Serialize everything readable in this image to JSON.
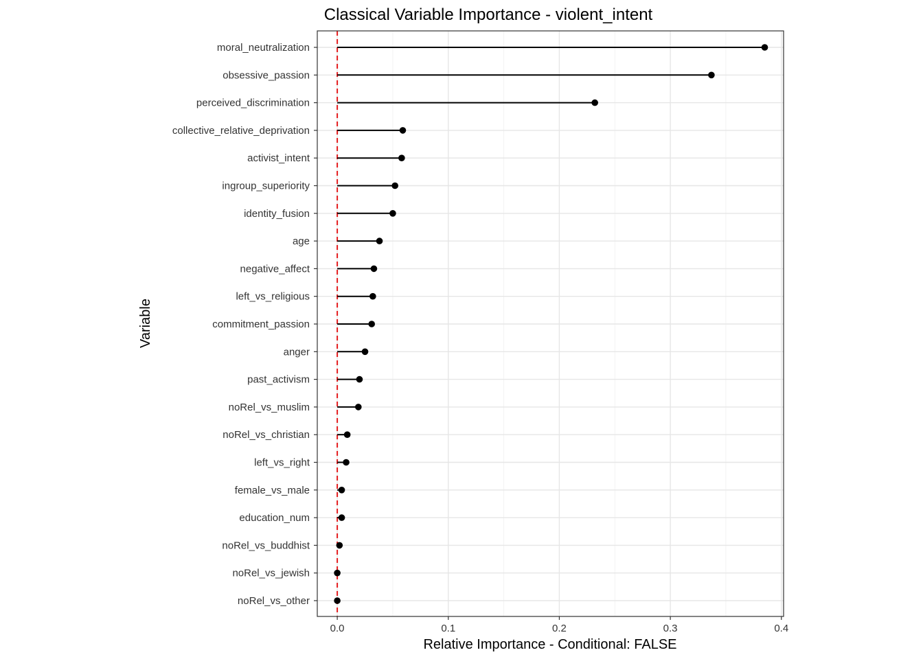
{
  "chart_data": {
    "type": "lollipop",
    "orientation": "horizontal",
    "title": "Classical Variable Importance - violent_intent",
    "xlabel": "Relative Importance - Conditional: FALSE",
    "ylabel": "Variable",
    "xlim": [
      -0.018,
      0.402
    ],
    "xticks": [
      0.0,
      0.1,
      0.2,
      0.3,
      0.4
    ],
    "xtick_labels": [
      "0.0",
      "0.1",
      "0.2",
      "0.3",
      "0.4"
    ],
    "reference_line": {
      "x": 0,
      "color": "#e41a1c",
      "style": "dashed"
    },
    "grid": true,
    "theme": "bw",
    "categories": [
      "moral_neutralization",
      "obsessive_passion",
      "perceived_discrimination",
      "collective_relative_deprivation",
      "activist_intent",
      "ingroup_superiority",
      "identity_fusion",
      "age",
      "negative_affect",
      "left_vs_religious",
      "commitment_passion",
      "anger",
      "past_activism",
      "noRel_vs_muslim",
      "noRel_vs_christian",
      "left_vs_right",
      "female_vs_male",
      "education_num",
      "noRel_vs_buddhist",
      "noRel_vs_jewish",
      "noRel_vs_other"
    ],
    "values": [
      0.385,
      0.337,
      0.232,
      0.059,
      0.058,
      0.052,
      0.05,
      0.038,
      0.033,
      0.032,
      0.031,
      0.025,
      0.02,
      0.019,
      0.009,
      0.008,
      0.004,
      0.004,
      0.002,
      0.0,
      0.0
    ]
  }
}
